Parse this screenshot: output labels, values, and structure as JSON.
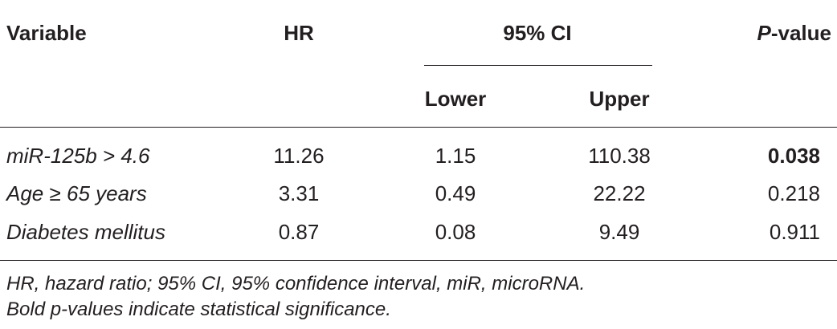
{
  "table": {
    "headers": {
      "variable": "Variable",
      "hr": "HR",
      "ci": "95% CI",
      "lower": "Lower",
      "upper": "Upper",
      "p_italic": "P",
      "p_rest": "-value"
    },
    "rows": [
      {
        "variable": "miR-125b > 4.6",
        "hr": "11.26",
        "lower": "1.15",
        "upper": "110.38",
        "p": "0.038",
        "p_bold": true
      },
      {
        "variable": "Age ≥ 65 years",
        "hr": "3.31",
        "lower": "0.49",
        "upper": "22.22",
        "p": "0.218",
        "p_bold": false
      },
      {
        "variable": "Diabetes mellitus",
        "hr": "0.87",
        "lower": "0.08",
        "upper": "9.49",
        "p": "0.911",
        "p_bold": false
      }
    ]
  },
  "footnotes": [
    "HR, hazard ratio; 95% CI, 95% confidence interval, miR, microRNA.",
    "Bold p-values indicate statistical significance."
  ]
}
